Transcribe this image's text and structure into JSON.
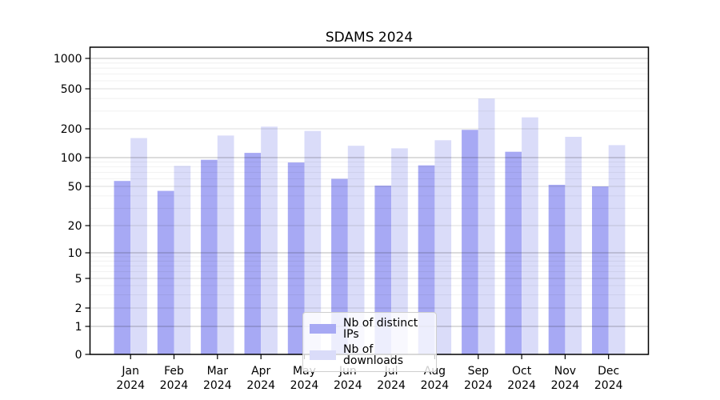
{
  "title": "SDAMS 2024",
  "year_label": "2024",
  "chart_data": {
    "type": "bar",
    "title": "SDAMS 2024",
    "categories": [
      "Jan",
      "Feb",
      "Mar",
      "Apr",
      "May",
      "Jun",
      "Jul",
      "Aug",
      "Sep",
      "Oct",
      "Nov",
      "Dec"
    ],
    "category_year": "2024",
    "series": [
      {
        "name": "Nb of distinct IPs",
        "color": "#a7a9f4",
        "values": [
          57,
          45,
          95,
          112,
          89,
          60,
          51,
          83,
          195,
          115,
          52,
          50
        ]
      },
      {
        "name": "Nb of downloads",
        "color": "#dadcf9",
        "values": [
          160,
          82,
          170,
          210,
          190,
          133,
          125,
          152,
          400,
          260,
          165,
          135
        ]
      }
    ],
    "yscale": "symlog",
    "yticks": [
      0,
      1,
      2,
      5,
      10,
      20,
      50,
      100,
      200,
      500,
      1000
    ],
    "ylim": [
      0,
      1000
    ],
    "grid": true,
    "legend_position": "lower center",
    "background_color": "#ffffff",
    "spine_color": "#000000"
  }
}
